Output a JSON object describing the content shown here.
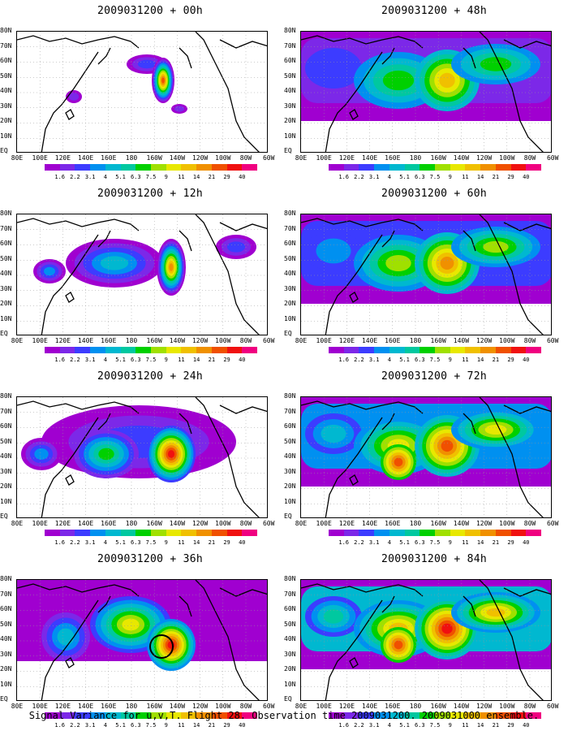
{
  "panels": [
    {
      "title": "2009031200 + 00h",
      "col": 0,
      "row": 0,
      "level": 0
    },
    {
      "title": "2009031200 + 12h",
      "col": 0,
      "row": 1,
      "level": 1
    },
    {
      "title": "2009031200 + 24h",
      "col": 0,
      "row": 2,
      "level": 2
    },
    {
      "title": "2009031200 + 36h",
      "col": 0,
      "row": 3,
      "level": 3
    },
    {
      "title": "2009031200 + 48h",
      "col": 1,
      "row": 0,
      "level": 4
    },
    {
      "title": "2009031200 + 60h",
      "col": 1,
      "row": 1,
      "level": 5
    },
    {
      "title": "2009031200 + 72h",
      "col": 1,
      "row": 2,
      "level": 6
    },
    {
      "title": "2009031200 + 84h",
      "col": 1,
      "row": 3,
      "level": 7
    }
  ],
  "lat_labels": [
    "80N",
    "70N",
    "60N",
    "50N",
    "40N",
    "30N",
    "20N",
    "10N",
    "EQ"
  ],
  "lon_labels": [
    "80E",
    "100E",
    "120E",
    "140E",
    "160E",
    "180",
    "160W",
    "140W",
    "120W",
    "100W",
    "80W",
    "60W"
  ],
  "colorbar": {
    "labels": [
      "1.6",
      "2.2",
      "3.1",
      "4",
      "5.1",
      "6.3",
      "7.5",
      "9",
      "11",
      "14",
      "21",
      "29",
      "40"
    ],
    "colors": [
      "#a000d0",
      "#7c28e8",
      "#3c3cff",
      "#0090f0",
      "#00b8d0",
      "#00c8a0",
      "#00d000",
      "#a0e000",
      "#e8e800",
      "#f0c000",
      "#f09000",
      "#f05000",
      "#f01010",
      "#f00080"
    ]
  },
  "footer": "Signal Variance for u,v,T. Flight 28. Observation time 2009031200. 2009031000 ensemble."
}
